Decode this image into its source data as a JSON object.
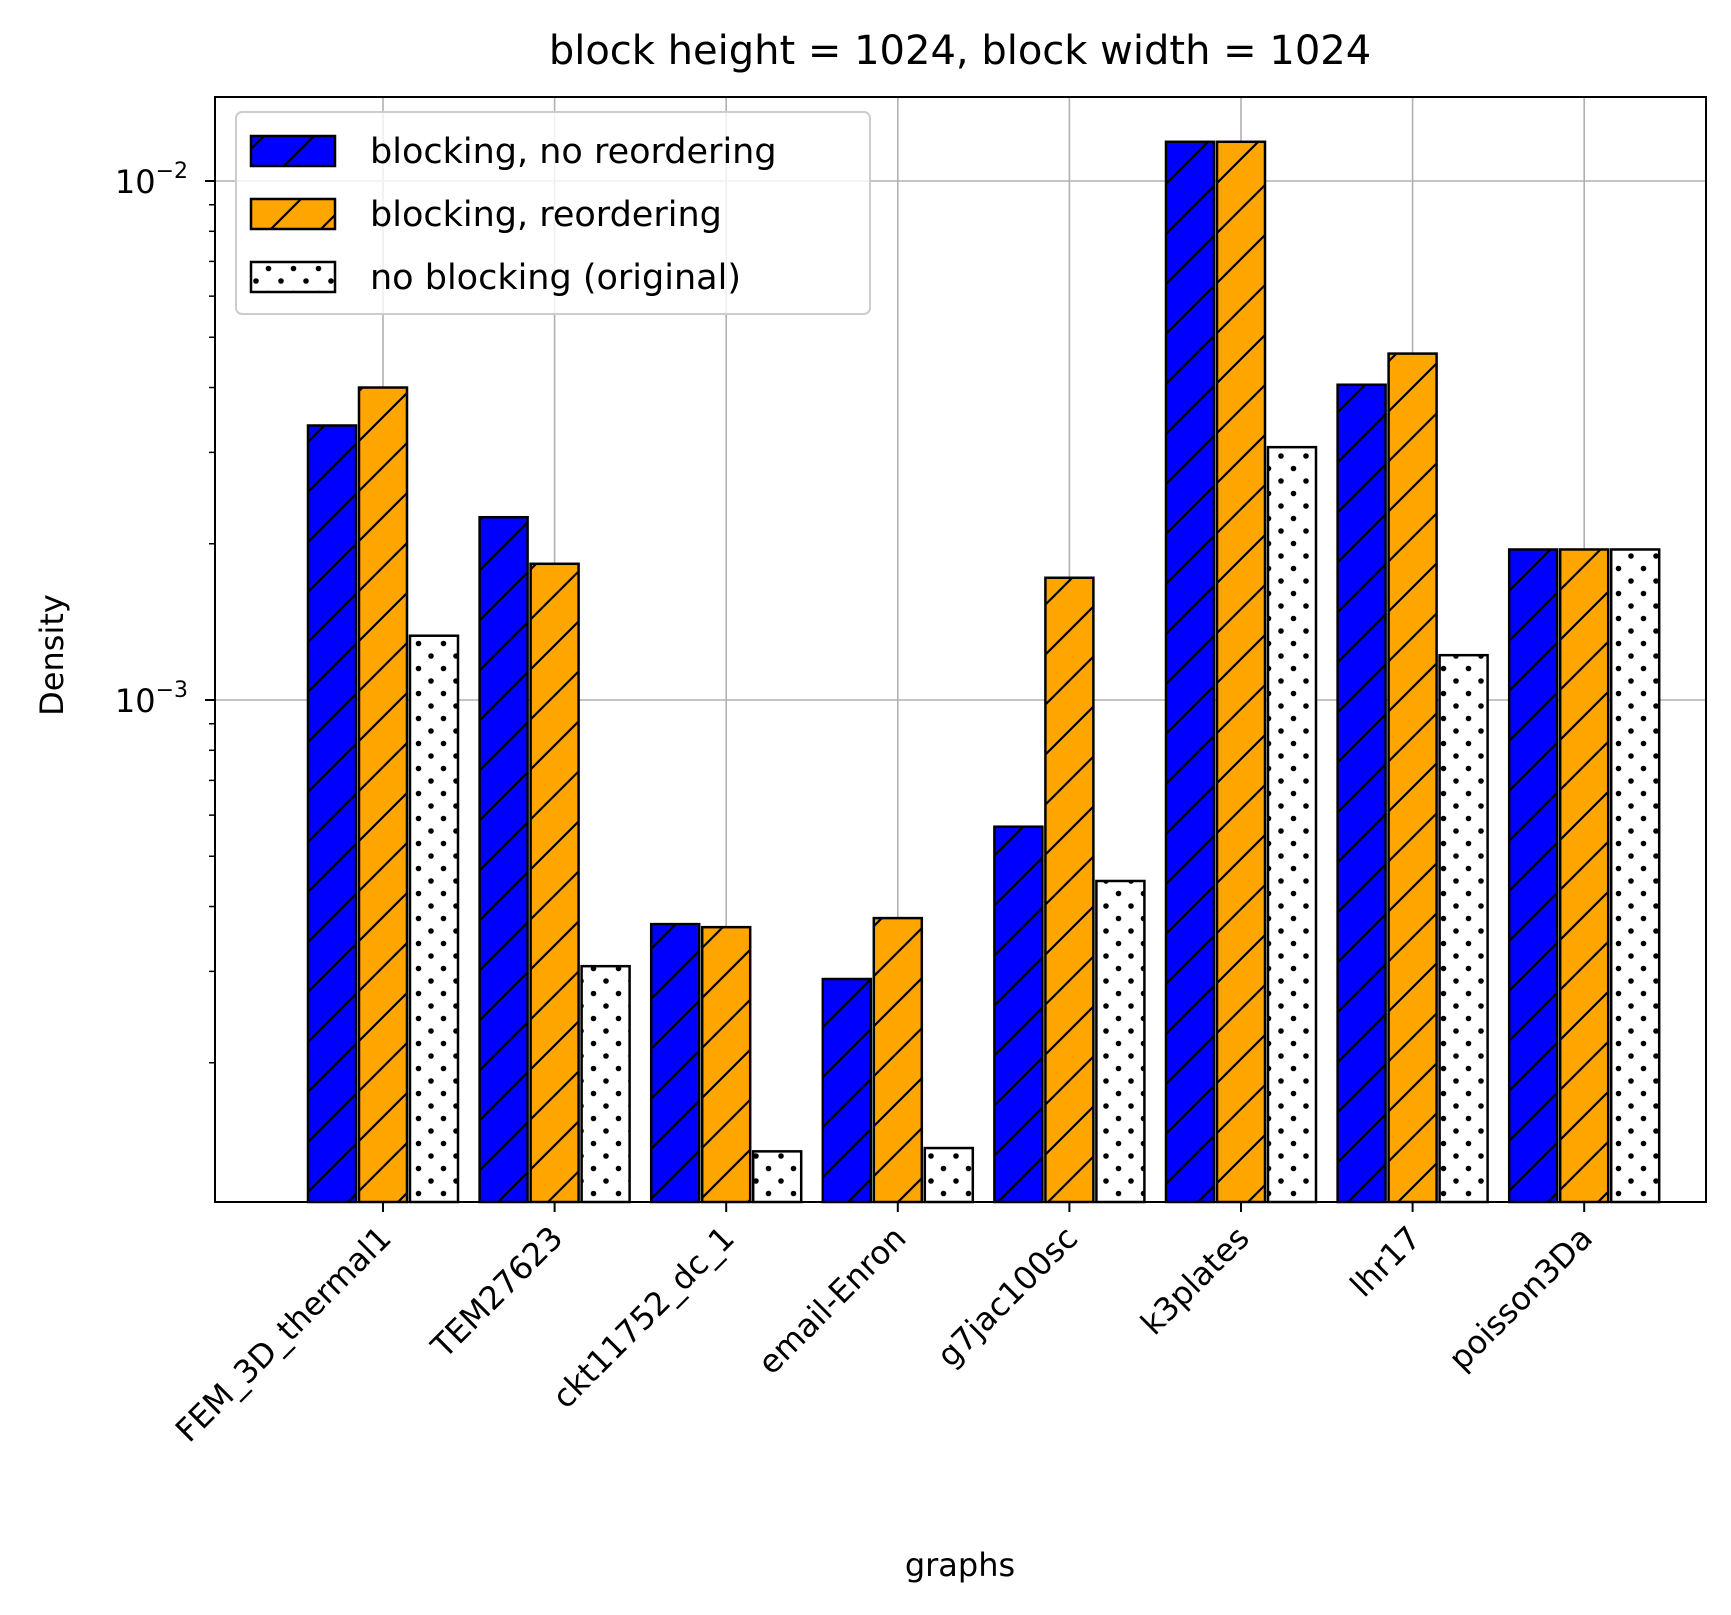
{
  "chart_data": {
    "type": "bar",
    "title": "block height = 1024, block width = 1024",
    "xlabel": "graphs",
    "ylabel": "Density",
    "yscale": "log",
    "ylim": [
      0.000107,
      0.0155
    ],
    "yticks": [
      {
        "value": 0.01,
        "base": "10",
        "exp": "−2"
      },
      {
        "value": 0.001,
        "base": "10",
        "exp": "−3"
      }
    ],
    "grid": true,
    "legend_position": "top-left",
    "categories": [
      "FEM_3D_thermal1",
      "TEM27623",
      "ckt11752_dc_1",
      "email-Enron",
      "g7jac100sc",
      "k3plates",
      "lhr17",
      "poisson3Da"
    ],
    "series": [
      {
        "name": "blocking, no reordering",
        "color": "#0000ff",
        "pattern": "hatch",
        "values": [
          0.00338,
          0.00225,
          0.00037,
          0.00029,
          0.00057,
          0.0119,
          0.00405,
          0.00195
        ]
      },
      {
        "name": "blocking, reordering",
        "color": "#ffa500",
        "pattern": "hatch",
        "values": [
          0.004,
          0.00183,
          0.000365,
          0.00038,
          0.00172,
          0.0119,
          0.00465,
          0.00195
        ]
      },
      {
        "name": "no blocking (original)",
        "color": "#ffffff",
        "pattern": "dots",
        "values": [
          0.00133,
          0.000307,
          0.000135,
          0.000137,
          0.000448,
          0.00307,
          0.00122,
          0.00195
        ]
      }
    ]
  }
}
